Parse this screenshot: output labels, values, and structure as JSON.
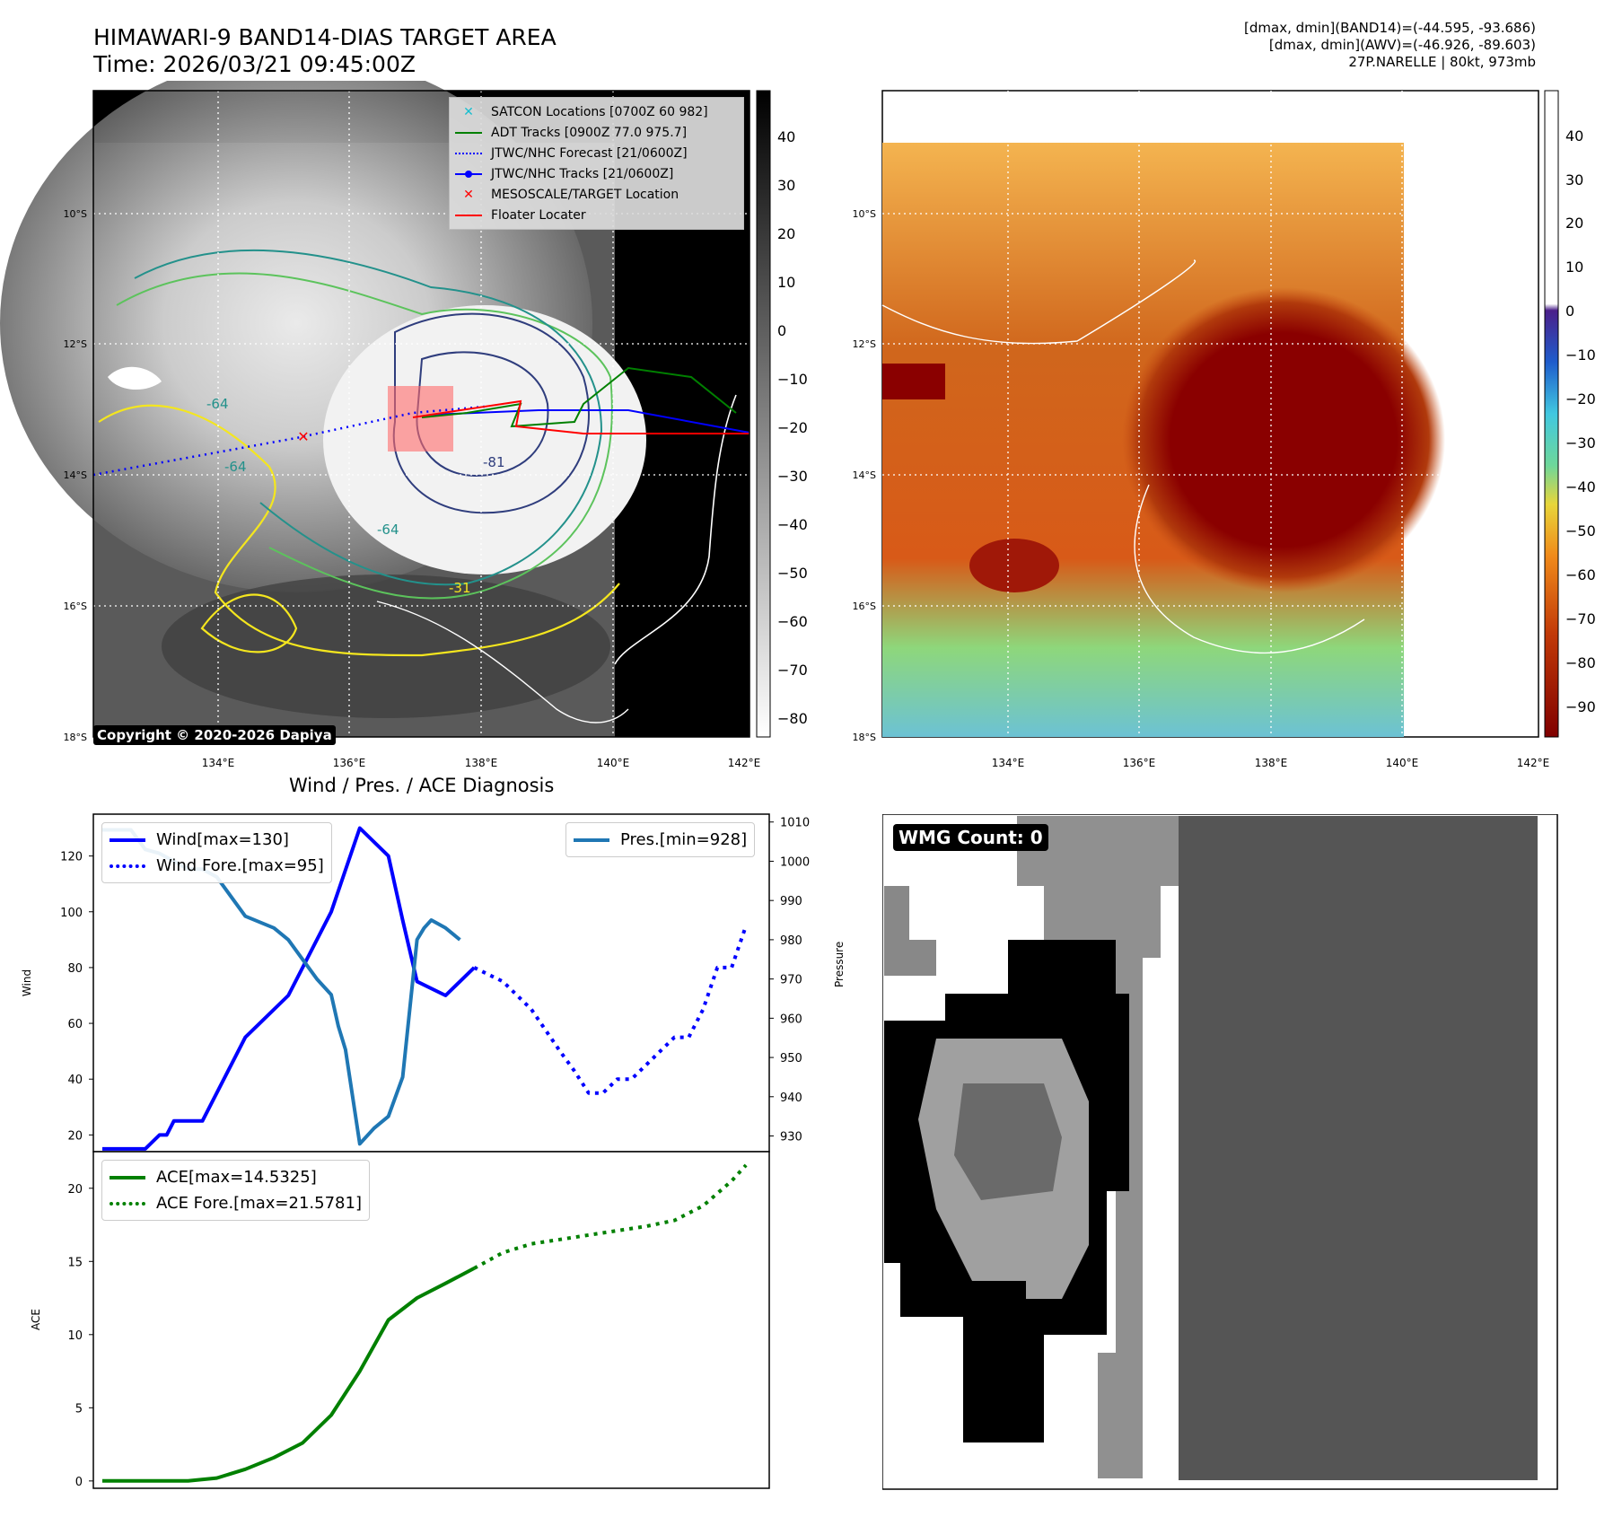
{
  "header": {
    "title_line1": "HIMAWARI-9 BAND14-DIAS TARGET AREA",
    "title_line2": "Time: 2026/03/21 09:45:00Z",
    "info_line1": "[dmax, dmin](BAND14)=(-44.595, -93.686)",
    "info_line2": "[dmax, dmin](AWV)=(-46.926, -89.603)",
    "info_line3": "27P.NARELLE | 80kt, 973mb"
  },
  "map": {
    "lat_ticks": [
      "10°S",
      "12°S",
      "14°S",
      "16°S",
      "18°S"
    ],
    "lon_ticks": [
      "134°E",
      "136°E",
      "138°E",
      "140°E",
      "142°E"
    ],
    "copyright": "Copyright © 2020-2026 Dapiya",
    "contour_labels": [
      "-64",
      "-64",
      "-81",
      "-64",
      "-31"
    ],
    "colors": {
      "coast": "#ffffff",
      "contour_yellow": "#f4e61e",
      "contour_green": "#5cc35c",
      "contour_teal": "#23918b",
      "contour_navy": "#2f3d7d"
    }
  },
  "left_colorbar": {
    "unit": "°C",
    "ticks": [
      "40",
      "30",
      "20",
      "10",
      "0",
      "−10",
      "−20",
      "−30",
      "−40",
      "−50",
      "−60",
      "−70",
      "−80"
    ]
  },
  "right_colorbar": {
    "unit": "°C",
    "ticks": [
      "40",
      "30",
      "20",
      "10",
      "0",
      "−10",
      "−20",
      "−30",
      "−40",
      "−50",
      "−60",
      "−70",
      "−80",
      "−90"
    ]
  },
  "legend": {
    "items": [
      {
        "label": "SATCON Locations [0700Z 60 982]",
        "color": "#17becf",
        "marker": "x-icon"
      },
      {
        "label": "ADT Tracks [0900Z 77.0 975.7]",
        "color": "#008000",
        "marker": "solid-line"
      },
      {
        "label": "JTWC/NHC Forecast [21/0600Z]",
        "color": "#0000ff",
        "marker": "dotted-line"
      },
      {
        "label": "JTWC/NHC Tracks [21/0600Z]",
        "color": "#0000ff",
        "marker": "dot-line"
      },
      {
        "label": "MESOSCALE/TARGET Location",
        "color": "#ff0000",
        "marker": "x-icon"
      },
      {
        "label": "Floater Locater",
        "color": "#ff0000",
        "marker": "solid-line"
      }
    ]
  },
  "wmg": {
    "label": "WMG Count: 0"
  },
  "chart_data": [
    {
      "type": "line",
      "title": "Wind / Pres. / ACE Diagnosis",
      "ylabel": "Wind",
      "ylabel2": "Pressure",
      "ylim": [
        14,
        135
      ],
      "y2lim": [
        926,
        1012
      ],
      "yticks": [
        20,
        40,
        60,
        80,
        100,
        120
      ],
      "y2ticks": [
        930,
        940,
        950,
        960,
        970,
        980,
        990,
        1000,
        1010
      ],
      "series": [
        {
          "name": "Wind[max=130]",
          "color": "#0000ff",
          "style": "solid",
          "x": [
            0,
            3,
            4,
            4.5,
            5,
            6,
            7,
            10,
            13,
            16,
            18,
            20,
            21,
            22,
            24,
            25,
            26
          ],
          "values": [
            15,
            15,
            20,
            20,
            25,
            25,
            25,
            55,
            70,
            100,
            130,
            120,
            97,
            75,
            70,
            75,
            80
          ]
        },
        {
          "name": "Wind Fore.[max=95]",
          "color": "#0000ff",
          "style": "dotted",
          "x": [
            26,
            28,
            30,
            32,
            33,
            34,
            35,
            36,
            37,
            38,
            39,
            40,
            41,
            42,
            43,
            44,
            45
          ],
          "values": [
            80,
            75,
            65,
            50,
            43,
            35,
            35,
            40,
            40,
            45,
            50,
            55,
            55,
            65,
            80,
            80,
            95
          ]
        },
        {
          "name": "Pres.[min=928]",
          "color": "#1f77b4",
          "style": "solid",
          "axis": "right",
          "x": [
            0,
            2,
            3,
            4,
            5,
            6,
            7,
            8,
            10,
            12,
            13,
            14,
            15,
            16,
            16.5,
            17,
            18,
            19,
            20,
            21,
            22,
            22.5,
            23,
            24,
            25
          ],
          "values": [
            1008,
            1008,
            1003,
            1002,
            1000,
            998,
            998,
            996,
            986,
            983,
            980,
            975,
            970,
            966,
            958,
            952,
            928,
            932,
            935,
            945,
            980,
            983,
            985,
            983,
            980
          ]
        }
      ]
    },
    {
      "type": "line",
      "ylabel": "ACE",
      "ylim": [
        -0.5,
        22.5
      ],
      "yticks": [
        0,
        5,
        10,
        15,
        20
      ],
      "series": [
        {
          "name": "ACE[max=14.5325]",
          "color": "#008000",
          "style": "solid",
          "x": [
            0,
            4,
            6,
            8,
            10,
            12,
            14,
            16,
            18,
            20,
            22,
            24,
            26
          ],
          "values": [
            0,
            0,
            0,
            0.2,
            0.8,
            1.6,
            2.6,
            4.5,
            7.5,
            11.0,
            12.5,
            13.5,
            14.53
          ]
        },
        {
          "name": "ACE Fore.[max=21.5781]",
          "color": "#008000",
          "style": "dotted",
          "x": [
            26,
            28,
            30,
            32,
            34,
            36,
            38,
            40,
            42,
            44,
            45
          ],
          "values": [
            14.53,
            15.6,
            16.2,
            16.5,
            16.8,
            17.1,
            17.4,
            17.8,
            18.8,
            20.5,
            21.58
          ]
        }
      ]
    }
  ]
}
